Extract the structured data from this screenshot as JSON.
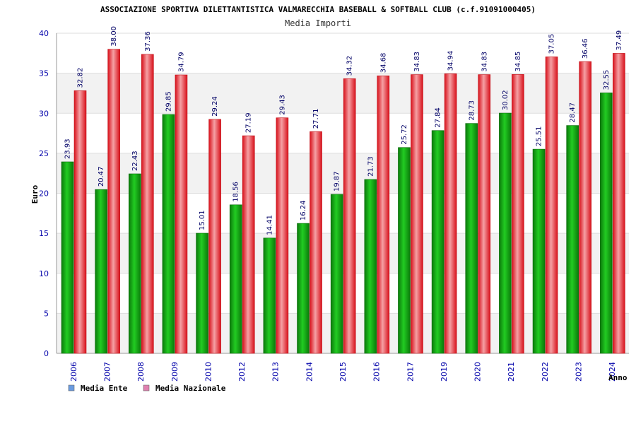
{
  "chart_data": {
    "type": "bar",
    "title": "ASSOCIAZIONE SPORTIVA DILETTANTISTICA VALMARECCHIA BASEBALL & SOFTBALL CLUB (c.f.91091000405)",
    "subtitle": "Media Importi",
    "xlabel": "Anno",
    "ylabel": "Euro",
    "ylim": [
      0,
      40
    ],
    "yticks": [
      0,
      5,
      10,
      15,
      20,
      25,
      30,
      35,
      40
    ],
    "grid": true,
    "legend_position": "bottom-left",
    "categories": [
      "2006",
      "2007",
      "2008",
      "2009",
      "2010",
      "2012",
      "2013",
      "2014",
      "2015",
      "2016",
      "2017",
      "2019",
      "2020",
      "2021",
      "2022",
      "2023",
      "2024"
    ],
    "series": [
      {
        "name": "Media Ente",
        "legend_color": "#6a9be0",
        "bar_color": "#119911",
        "values": [
          23.93,
          20.47,
          22.43,
          29.85,
          15.01,
          18.56,
          14.41,
          16.24,
          19.87,
          21.73,
          25.72,
          27.84,
          28.73,
          30.02,
          25.51,
          28.47,
          32.55
        ]
      },
      {
        "name": "Media Nazionale",
        "legend_color": "#e080b0",
        "bar_color": "#e8202a",
        "values": [
          32.82,
          38.0,
          37.36,
          34.79,
          29.24,
          27.19,
          29.43,
          27.71,
          34.32,
          34.68,
          34.83,
          34.94,
          34.83,
          34.85,
          37.05,
          36.46,
          37.49
        ]
      }
    ]
  }
}
